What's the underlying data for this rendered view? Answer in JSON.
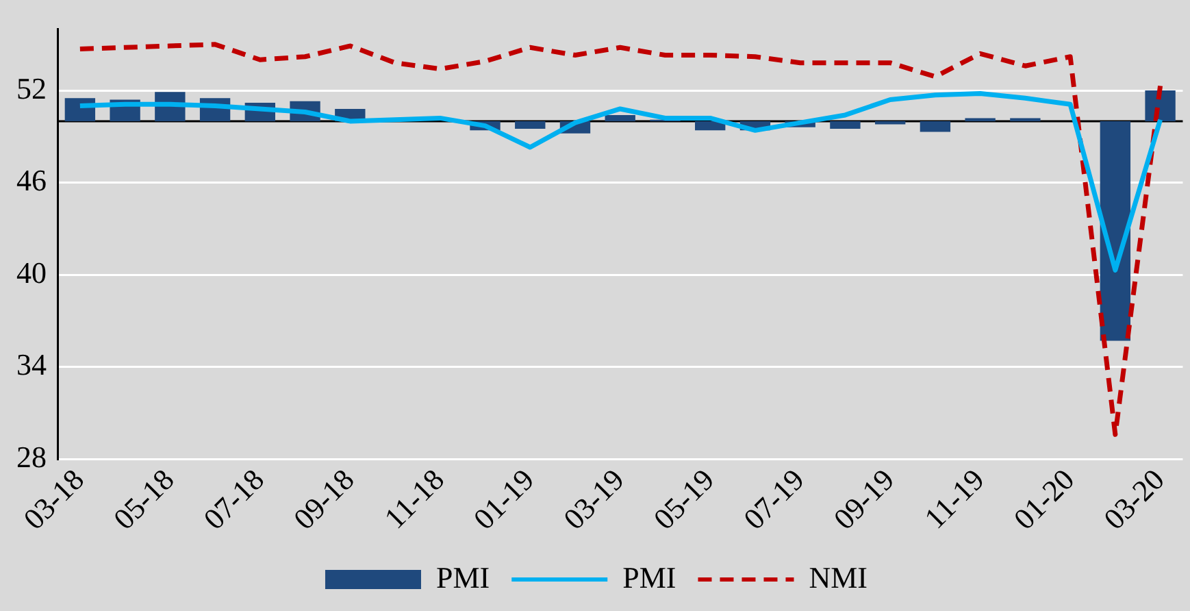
{
  "chart_data": {
    "type": "bar",
    "categories": [
      "03-18",
      null,
      "05-18",
      null,
      "07-18",
      null,
      "09-18",
      null,
      "11-18",
      null,
      "01-19",
      null,
      "03-19",
      null,
      "05-19",
      null,
      "07-19",
      null,
      "09-19",
      null,
      "11-19",
      null,
      "01-20",
      null,
      "03-20"
    ],
    "series": [
      {
        "name": "PMI",
        "color": "#1f497d",
        "base": [
          50,
          50,
          50,
          50,
          50,
          50,
          50,
          null,
          null,
          50,
          50,
          50,
          50,
          50,
          50,
          50,
          50,
          50,
          50,
          50,
          50,
          50,
          null,
          50,
          50
        ],
        "values": [
          1.5,
          1.4,
          1.9,
          1.5,
          1.2,
          1.3,
          0.8,
          null,
          null,
          -0.6,
          -0.5,
          -0.8,
          0.4,
          0.1,
          -0.6,
          -0.6,
          -0.4,
          -0.5,
          -0.2,
          -0.7,
          0.2,
          0.2,
          null,
          -14.3,
          2.0
        ]
      },
      {
        "name": "PMI",
        "type": "line",
        "color": "#00b0f0",
        "line_style": "solid",
        "values": [
          51.0,
          51.1,
          51.1,
          51.0,
          50.8,
          50.6,
          50.0,
          50.1,
          50.2,
          49.7,
          48.3,
          49.9,
          50.8,
          50.2,
          50.2,
          49.4,
          49.9,
          50.4,
          51.4,
          51.7,
          51.8,
          51.5,
          51.1,
          40.3,
          50.1
        ]
      },
      {
        "name": "NMI",
        "type": "line",
        "color": "#c00000",
        "line_style": "dashed",
        "values": [
          54.7,
          54.8,
          54.9,
          55.0,
          54.0,
          54.2,
          54.9,
          53.8,
          53.4,
          53.9,
          54.8,
          54.3,
          54.8,
          54.3,
          54.3,
          54.2,
          53.8,
          53.8,
          53.8,
          52.9,
          54.4,
          53.6,
          54.2,
          29.6,
          52.3
        ]
      }
    ],
    "ref_lines": [
      {
        "axis": "y",
        "value": 50,
        "color": "#000000",
        "line_style": "solid"
      }
    ],
    "ylim": [
      28,
      56
    ],
    "yticks": [
      28,
      34,
      40,
      46,
      52
    ],
    "grid": "y",
    "legend": "bottom",
    "marker": "none"
  }
}
